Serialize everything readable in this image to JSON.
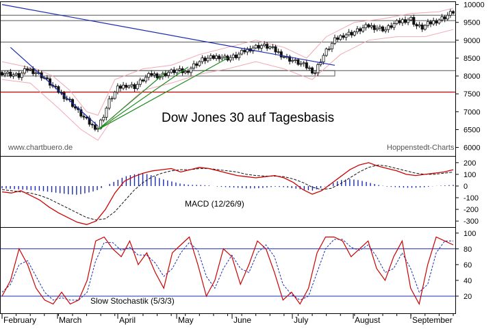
{
  "colors": {
    "candle": "#111111",
    "ma_band": "#f4a7b3",
    "down_trend": "#1a2bb0",
    "up_trend": "#1c8a1c",
    "support": "#cc0000",
    "macd_line": "#cc0000",
    "signal_line": "#111111",
    "histogram": "#1a2bb0",
    "stoch_k": "#cc0000",
    "stoch_d": "#1a2bb0",
    "level_line": "#1a2bb0"
  },
  "chart_data": [
    {
      "type": "candlestick",
      "title": "Dow Jones 30 auf Tagesbasis",
      "watermark_left": "www.chartbuero.de",
      "watermark_right": "Hoppenstedt-Charts",
      "y_ticks": [
        "10000",
        "9500",
        "9000",
        "8500",
        "8000",
        "7500",
        "7000",
        "6500",
        "6000"
      ],
      "ylim": [
        5800,
        10050
      ],
      "x_months": [
        "February",
        "March",
        "April",
        "May",
        "June",
        "July",
        "August",
        "September"
      ],
      "close_path": [
        [
          0,
          8100
        ],
        [
          3,
          8050
        ],
        [
          6,
          8000
        ],
        [
          9,
          8200
        ],
        [
          12,
          8100
        ],
        [
          15,
          7950
        ],
        [
          18,
          7700
        ],
        [
          21,
          7500
        ],
        [
          24,
          7300
        ],
        [
          27,
          7000
        ],
        [
          30,
          6750
        ],
        [
          32,
          6600
        ],
        [
          34,
          6550
        ],
        [
          36,
          6900
        ],
        [
          38,
          7300
        ],
        [
          41,
          7650
        ],
        [
          44,
          7750
        ],
        [
          47,
          7700
        ],
        [
          50,
          7900
        ],
        [
          53,
          8050
        ],
        [
          56,
          8000
        ],
        [
          59,
          8100
        ],
        [
          62,
          8150
        ],
        [
          65,
          8100
        ],
        [
          68,
          8300
        ],
        [
          71,
          8450
        ],
        [
          74,
          8500
        ],
        [
          77,
          8550
        ],
        [
          80,
          8500
        ],
        [
          83,
          8550
        ],
        [
          86,
          8700
        ],
        [
          89,
          8800
        ],
        [
          92,
          8850
        ],
        [
          95,
          8800
        ],
        [
          98,
          8650
        ],
        [
          101,
          8500
        ],
        [
          104,
          8400
        ],
        [
          107,
          8300
        ],
        [
          109,
          8200
        ],
        [
          111,
          8100
        ],
        [
          113,
          8450
        ],
        [
          115,
          8700
        ],
        [
          118,
          9000
        ],
        [
          121,
          9150
        ],
        [
          124,
          9200
        ],
        [
          127,
          9300
        ],
        [
          130,
          9400
        ],
        [
          133,
          9350
        ],
        [
          136,
          9300
        ],
        [
          139,
          9450
        ],
        [
          142,
          9550
        ],
        [
          145,
          9600
        ],
        [
          147,
          9400
        ],
        [
          149,
          9350
        ],
        [
          151,
          9450
        ],
        [
          154,
          9550
        ],
        [
          157,
          9650
        ],
        [
          159,
          9750
        ],
        [
          160,
          9800
        ]
      ],
      "upper_band": [
        [
          0,
          8400
        ],
        [
          6,
          8300
        ],
        [
          12,
          8200
        ],
        [
          18,
          8000
        ],
        [
          24,
          7600
        ],
        [
          30,
          7000
        ],
        [
          34,
          6900
        ],
        [
          40,
          7900
        ],
        [
          50,
          8200
        ],
        [
          60,
          8300
        ],
        [
          70,
          8600
        ],
        [
          80,
          8800
        ],
        [
          90,
          9000
        ],
        [
          100,
          8800
        ],
        [
          108,
          8500
        ],
        [
          115,
          9100
        ],
        [
          125,
          9500
        ],
        [
          135,
          9600
        ],
        [
          145,
          9750
        ],
        [
          155,
          9800
        ],
        [
          160,
          9900
        ]
      ],
      "lower_band": [
        [
          0,
          7900
        ],
        [
          10,
          7800
        ],
        [
          20,
          7100
        ],
        [
          28,
          6500
        ],
        [
          34,
          6200
        ],
        [
          40,
          6900
        ],
        [
          50,
          7600
        ],
        [
          60,
          7800
        ],
        [
          70,
          8050
        ],
        [
          80,
          8200
        ],
        [
          90,
          8400
        ],
        [
          100,
          8200
        ],
        [
          110,
          7900
        ],
        [
          120,
          8600
        ],
        [
          130,
          9000
        ],
        [
          140,
          9100
        ],
        [
          150,
          9100
        ],
        [
          160,
          9300
        ]
      ],
      "trendlines": [
        {
          "kind": "down",
          "from": [
            0,
            10000
          ],
          "to": [
            118,
            8300
          ]
        },
        {
          "kind": "down",
          "from": [
            3,
            8800
          ],
          "to": [
            34,
            6600
          ]
        },
        {
          "kind": "up",
          "from": [
            34,
            6500
          ],
          "to": [
            58,
            8100
          ]
        },
        {
          "kind": "up",
          "from": [
            34,
            6500
          ],
          "to": [
            66,
            8250
          ]
        },
        {
          "kind": "up",
          "from": [
            34,
            6500
          ],
          "to": [
            80,
            8500
          ]
        }
      ],
      "horizontal_levels": [
        9700,
        9550,
        8950,
        8150,
        7550
      ],
      "support_level": 7550,
      "box_levels": [
        [
          8150,
          8000
        ]
      ]
    },
    {
      "type": "line",
      "title": "MACD (12/26/9)",
      "y_ticks": [
        "200",
        "100",
        "0",
        "-100",
        "-200",
        "-300"
      ],
      "ylim": [
        -340,
        240
      ],
      "series": [
        {
          "role": "macd",
          "values": [
            -50,
            -60,
            -40,
            -80,
            -120,
            -180,
            -230,
            -270,
            -310,
            -330,
            -300,
            -200,
            -60,
            40,
            80,
            110,
            130,
            140,
            150,
            120,
            140,
            160,
            150,
            130,
            110,
            90,
            80,
            70,
            80,
            90,
            70,
            30,
            -30,
            -70,
            -40,
            20,
            80,
            140,
            180,
            200,
            170,
            150,
            130,
            100,
            90,
            100,
            110,
            120,
            140
          ]
        },
        {
          "role": "signal",
          "values": [
            -30,
            -40,
            -50,
            -60,
            -80,
            -110,
            -150,
            -190,
            -230,
            -270,
            -290,
            -280,
            -220,
            -130,
            -40,
            30,
            80,
            110,
            130,
            140,
            140,
            150,
            150,
            140,
            130,
            120,
            100,
            90,
            85,
            85,
            80,
            60,
            30,
            -10,
            -30,
            -20,
            20,
            70,
            120,
            160,
            180,
            170,
            150,
            130,
            110,
            100,
            100,
            110,
            120
          ]
        },
        {
          "role": "histogram",
          "values": [
            -20,
            -25,
            -30,
            -35,
            -40,
            -50,
            -60,
            -70,
            -75,
            -60,
            -40,
            0,
            40,
            80,
            100,
            110,
            90,
            60,
            40,
            20,
            10,
            10,
            5,
            -5,
            -10,
            -15,
            -20,
            -20,
            -15,
            -5,
            -10,
            -20,
            -30,
            -40,
            -15,
            20,
            50,
            60,
            50,
            30,
            10,
            -5,
            -10,
            -15,
            -15,
            -10,
            0,
            5,
            10
          ]
        }
      ]
    },
    {
      "type": "line",
      "title": "Slow Stochastik (5/3/3)",
      "y_ticks": [
        "100",
        "80",
        "60",
        "40",
        "20"
      ],
      "ylim": [
        0,
        105
      ],
      "levels": [
        80,
        20
      ],
      "series": [
        {
          "role": "k",
          "values": [
            20,
            40,
            80,
            60,
            30,
            15,
            10,
            25,
            10,
            15,
            40,
            90,
            95,
            80,
            70,
            90,
            60,
            75,
            50,
            30,
            75,
            85,
            95,
            60,
            20,
            40,
            80,
            70,
            35,
            60,
            90,
            80,
            50,
            15,
            25,
            10,
            30,
            75,
            95,
            95,
            90,
            70,
            80,
            90,
            55,
            40,
            70,
            90,
            30,
            10,
            60,
            95,
            90,
            85
          ]
        },
        {
          "role": "d",
          "values": [
            25,
            35,
            60,
            65,
            45,
            25,
            15,
            18,
            15,
            15,
            25,
            65,
            88,
            88,
            78,
            82,
            72,
            72,
            62,
            45,
            55,
            75,
            88,
            78,
            45,
            30,
            55,
            72,
            55,
            50,
            75,
            85,
            70,
            35,
            22,
            15,
            20,
            50,
            80,
            92,
            92,
            82,
            78,
            85,
            70,
            50,
            55,
            75,
            55,
            25,
            35,
            75,
            90,
            90
          ]
        }
      ]
    }
  ]
}
